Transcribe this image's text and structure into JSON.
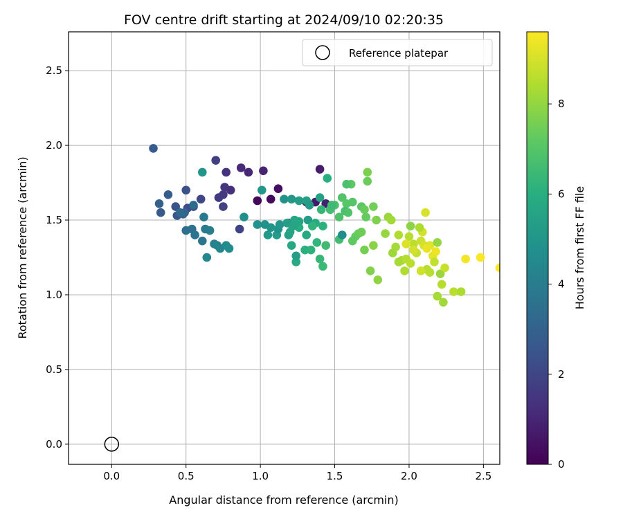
{
  "chart_data": {
    "type": "scatter",
    "title": "FOV centre drift starting at 2024/09/10 02:20:35",
    "xlabel": "Angular distance from reference (arcmin)",
    "ylabel": "Rotation from reference (arcmin)",
    "xlim": [
      -0.29,
      2.61
    ],
    "ylim": [
      -0.135,
      2.76
    ],
    "xticks": [
      0.0,
      0.5,
      1.0,
      1.5,
      2.0,
      2.5
    ],
    "yticks": [
      0.0,
      0.5,
      1.0,
      1.5,
      2.0,
      2.5
    ],
    "xtick_labels": [
      "0.0",
      "0.5",
      "1.0",
      "1.5",
      "2.0",
      "2.5"
    ],
    "ytick_labels": [
      "0.0",
      "0.5",
      "1.0",
      "1.5",
      "2.0",
      "2.5"
    ],
    "grid": true,
    "colormap": "viridis",
    "colorbar": {
      "label": "Hours from first FF file",
      "range": [
        0,
        9.6
      ],
      "ticks": [
        0,
        2,
        4,
        6,
        8
      ],
      "tick_labels": [
        "0",
        "2",
        "4",
        "6",
        "8"
      ]
    },
    "legend": {
      "placement": "top-right",
      "entries": [
        {
          "label": "Reference platepar",
          "marker": "open-circle"
        }
      ]
    },
    "reference_point": {
      "x": 0.0,
      "y": 0.0
    },
    "columns": [
      "x",
      "y",
      "hours"
    ],
    "points": [
      [
        0.98,
        1.63,
        0.15
      ],
      [
        1.07,
        1.64,
        0.25
      ],
      [
        1.12,
        1.71,
        0.35
      ],
      [
        1.19,
        1.48,
        0.45
      ],
      [
        1.31,
        1.62,
        0.55
      ],
      [
        1.37,
        1.62,
        0.65
      ],
      [
        1.4,
        1.84,
        0.75
      ],
      [
        1.44,
        1.61,
        0.85
      ],
      [
        1.02,
        1.83,
        0.95
      ],
      [
        0.92,
        1.82,
        1.05
      ],
      [
        0.87,
        1.85,
        1.15
      ],
      [
        0.8,
        1.7,
        1.25
      ],
      [
        0.77,
        1.82,
        1.35
      ],
      [
        0.76,
        1.72,
        1.45
      ],
      [
        0.75,
        1.67,
        1.55
      ],
      [
        0.72,
        1.65,
        1.65
      ],
      [
        0.7,
        1.9,
        1.75
      ],
      [
        0.75,
        1.59,
        1.85
      ],
      [
        0.86,
        1.44,
        1.95
      ],
      [
        0.6,
        1.64,
        2.05
      ],
      [
        0.55,
        1.59,
        2.15
      ],
      [
        0.51,
        1.58,
        2.25
      ],
      [
        0.5,
        1.7,
        2.35
      ],
      [
        0.43,
        1.59,
        2.45
      ],
      [
        0.44,
        1.53,
        2.55
      ],
      [
        0.33,
        1.55,
        2.65
      ],
      [
        0.28,
        1.98,
        2.75
      ],
      [
        0.38,
        1.67,
        2.85
      ],
      [
        0.32,
        1.61,
        2.95
      ],
      [
        0.49,
        1.55,
        3.05
      ],
      [
        0.48,
        1.54,
        3.15
      ],
      [
        0.46,
        1.55,
        3.25
      ],
      [
        0.55,
        1.6,
        3.35
      ],
      [
        0.5,
        1.43,
        3.45
      ],
      [
        0.54,
        1.44,
        3.55
      ],
      [
        0.56,
        1.4,
        3.65
      ],
      [
        0.61,
        1.36,
        3.75
      ],
      [
        0.62,
        1.52,
        3.85
      ],
      [
        0.63,
        1.44,
        3.95
      ],
      [
        0.66,
        1.43,
        4.05
      ],
      [
        0.69,
        1.34,
        4.15
      ],
      [
        0.71,
        1.33,
        4.25
      ],
      [
        0.73,
        1.31,
        4.35
      ],
      [
        0.64,
        1.25,
        4.45
      ],
      [
        0.77,
        1.33,
        4.55
      ],
      [
        0.79,
        1.31,
        4.65
      ],
      [
        0.89,
        1.52,
        4.75
      ],
      [
        0.98,
        1.47,
        4.85
      ],
      [
        0.61,
        1.82,
        4.95
      ],
      [
        1.01,
        1.7,
        5.05
      ],
      [
        1.05,
        1.4,
        5.15
      ],
      [
        1.11,
        1.4,
        5.25
      ],
      [
        1.18,
        1.48,
        5.35
      ],
      [
        1.19,
        1.4,
        5.45
      ],
      [
        1.2,
        1.42,
        5.55
      ],
      [
        1.23,
        1.5,
        5.65
      ],
      [
        1.21,
        1.33,
        5.75
      ],
      [
        1.24,
        1.22,
        5.85
      ],
      [
        1.26,
        1.45,
        5.95
      ],
      [
        1.3,
        1.3,
        6.05
      ],
      [
        1.34,
        1.3,
        6.15
      ],
      [
        1.38,
        1.35,
        6.25
      ],
      [
        1.4,
        1.24,
        6.35
      ],
      [
        1.42,
        1.19,
        6.45
      ],
      [
        1.44,
        1.33,
        6.55
      ],
      [
        1.47,
        1.57,
        6.65
      ],
      [
        1.5,
        1.6,
        6.75
      ],
      [
        1.53,
        1.52,
        6.85
      ],
      [
        1.55,
        1.65,
        6.95
      ],
      [
        1.58,
        1.61,
        7.05
      ],
      [
        1.61,
        1.74,
        7.15
      ],
      [
        1.64,
        1.39,
        7.25
      ],
      [
        1.66,
        1.41,
        7.35
      ],
      [
        1.68,
        1.42,
        7.45
      ],
      [
        1.7,
        1.3,
        7.55
      ],
      [
        1.72,
        1.82,
        7.65
      ],
      [
        1.74,
        1.16,
        7.75
      ],
      [
        1.76,
        1.33,
        7.85
      ],
      [
        1.79,
        1.1,
        7.95
      ],
      [
        1.84,
        1.41,
        8.05
      ],
      [
        1.89,
        1.28,
        8.15
      ],
      [
        1.91,
        1.32,
        8.25
      ],
      [
        1.95,
        1.23,
        8.35
      ],
      [
        1.97,
        1.16,
        8.45
      ],
      [
        2.0,
        1.39,
        8.55
      ],
      [
        2.03,
        1.34,
        8.65
      ],
      [
        2.05,
        1.28,
        8.75
      ],
      [
        2.08,
        1.36,
        8.85
      ],
      [
        2.09,
        1.42,
        8.95
      ],
      [
        2.11,
        1.55,
        9.05
      ],
      [
        2.14,
        1.33,
        9.15
      ],
      [
        2.16,
        1.26,
        9.25
      ],
      [
        2.18,
        1.29,
        9.35
      ],
      [
        2.38,
        1.24,
        9.45
      ],
      [
        2.48,
        1.25,
        9.55
      ],
      [
        2.61,
        1.18,
        9.6
      ],
      [
        1.16,
        1.64,
        4.9
      ],
      [
        1.21,
        1.64,
        5.1
      ],
      [
        1.26,
        1.63,
        5.3
      ],
      [
        1.31,
        1.63,
        5.4
      ],
      [
        1.33,
        1.6,
        5.2
      ],
      [
        1.4,
        1.65,
        5.5
      ],
      [
        1.48,
        1.6,
        6.5
      ],
      [
        1.57,
        1.56,
        6.7
      ],
      [
        1.62,
        1.62,
        7.0
      ],
      [
        1.68,
        1.59,
        7.1
      ],
      [
        1.71,
        1.52,
        7.3
      ],
      [
        1.76,
        1.59,
        7.5
      ],
      [
        1.86,
        1.52,
        8.1
      ],
      [
        1.45,
        1.78,
        6.0
      ],
      [
        1.58,
        1.74,
        6.8
      ],
      [
        1.72,
        1.76,
        7.4
      ],
      [
        1.22,
        1.46,
        5.6
      ],
      [
        1.26,
        1.49,
        5.7
      ],
      [
        1.31,
        1.4,
        5.8
      ],
      [
        1.37,
        1.48,
        5.9
      ],
      [
        1.42,
        1.46,
        6.1
      ],
      [
        1.32,
        1.5,
        5.25
      ],
      [
        1.12,
        1.44,
        4.85
      ],
      [
        1.07,
        1.45,
        4.95
      ],
      [
        1.13,
        1.47,
        5.0
      ],
      [
        1.03,
        1.47,
        4.8
      ],
      [
        1.24,
        1.26,
        5.35
      ],
      [
        1.35,
        1.46,
        6.2
      ],
      [
        1.41,
        1.57,
        6.3
      ],
      [
        1.53,
        1.37,
        6.6
      ],
      [
        1.55,
        1.4,
        4.7
      ],
      [
        1.59,
        1.55,
        6.9
      ],
      [
        1.62,
        1.36,
        7.2
      ],
      [
        1.7,
        1.57,
        7.35
      ],
      [
        1.78,
        1.5,
        7.7
      ],
      [
        1.88,
        1.5,
        8.2
      ],
      [
        1.93,
        1.22,
        8.3
      ],
      [
        1.98,
        1.24,
        8.5
      ],
      [
        2.01,
        1.21,
        8.6
      ],
      [
        2.01,
        1.46,
        7.9
      ],
      [
        2.07,
        1.45,
        8.4
      ],
      [
        2.12,
        1.17,
        8.55
      ],
      [
        2.14,
        1.15,
        8.6
      ],
      [
        2.17,
        1.22,
        8.7
      ],
      [
        2.19,
        0.99,
        8.3
      ],
      [
        2.21,
        1.14,
        8.1
      ],
      [
        2.22,
        1.07,
        8.5
      ],
      [
        2.23,
        0.95,
        8.2
      ],
      [
        2.24,
        1.18,
        8.8
      ],
      [
        2.3,
        1.02,
        8.6
      ],
      [
        2.35,
        1.02,
        8.4
      ],
      [
        2.19,
        1.35,
        8.0
      ],
      [
        2.1,
        1.33,
        9.0
      ],
      [
        2.12,
        1.31,
        9.3
      ],
      [
        2.08,
        1.16,
        8.9
      ],
      [
        2.03,
        1.3,
        8.95
      ],
      [
        1.98,
        1.34,
        9.1
      ],
      [
        1.93,
        1.4,
        8.45
      ]
    ]
  }
}
